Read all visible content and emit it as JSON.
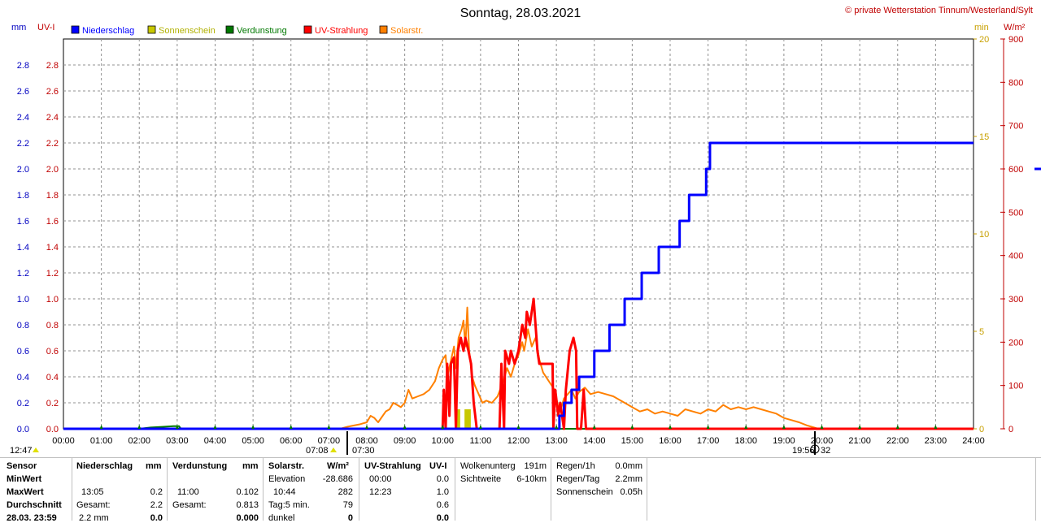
{
  "chart_data": {
    "type": "line",
    "title": "Sonntag, 28.03.2021",
    "copyright": "© private Wetterstation Tinnum/Westerland/Sylt",
    "left_units": [
      "mm",
      "UV-I"
    ],
    "right_units": [
      "min",
      "W/m²"
    ],
    "legend": [
      {
        "name": "Niederschlag",
        "color": "#0000ff"
      },
      {
        "name": "Sonnenschein",
        "color": "#c8c800"
      },
      {
        "name": "Verdunstung",
        "color": "#007800"
      },
      {
        "name": "UV-Strahlung",
        "color": "#ff0000"
      },
      {
        "name": "Solarstr.",
        "color": "#ff8000"
      }
    ],
    "x_labels": [
      "00:00",
      "01:00",
      "02:00",
      "03:00",
      "04:00",
      "05:00",
      "06:00",
      "07:00",
      "08:00",
      "09:00",
      "10:00",
      "11:00",
      "12:00",
      "13:00",
      "14:00",
      "15:00",
      "16:00",
      "17:00",
      "18:00",
      "19:00",
      "20:00",
      "21:00",
      "22:00",
      "23:00",
      "24:00"
    ],
    "xlim": [
      0,
      24
    ],
    "y_mm_ticks": [
      "0.0",
      "0.2",
      "0.4",
      "0.6",
      "0.8",
      "1.0",
      "1.2",
      "1.4",
      "1.6",
      "1.8",
      "2.0",
      "2.2",
      "2.4",
      "2.6",
      "2.8"
    ],
    "ylim_mm": [
      0,
      3.0
    ],
    "y_min_ticks": [
      "0",
      "5",
      "10",
      "15",
      "20"
    ],
    "ylim_min": [
      0,
      20
    ],
    "y_wm2_ticks": [
      "0",
      "100",
      "200",
      "300",
      "400",
      "500",
      "600",
      "700",
      "800",
      "900"
    ],
    "ylim_wm2": [
      0,
      900
    ],
    "markers": {
      "sunrise": "07:08",
      "civil": "07:30",
      "sunset": "19:56",
      "dusk": "20:32",
      "noon": "12:47"
    },
    "series": [
      {
        "name": "Niederschlag",
        "color": "#0000ff",
        "unit": "mm",
        "step": true,
        "points": [
          [
            0,
            0
          ],
          [
            13.0,
            0
          ],
          [
            13.08,
            0.1
          ],
          [
            13.2,
            0.2
          ],
          [
            13.4,
            0.3
          ],
          [
            13.6,
            0.4
          ],
          [
            14.0,
            0.6
          ],
          [
            14.4,
            0.8
          ],
          [
            14.8,
            1.0
          ],
          [
            15.25,
            1.2
          ],
          [
            15.7,
            1.4
          ],
          [
            16.25,
            1.6
          ],
          [
            16.5,
            1.8
          ],
          [
            16.95,
            2.0
          ],
          [
            17.05,
            2.2
          ],
          [
            24,
            2.2
          ]
        ]
      },
      {
        "name": "Verdunstung",
        "color": "#007800",
        "unit": "mm",
        "points": [
          [
            0,
            0
          ],
          [
            2.0,
            0
          ],
          [
            2.3,
            0.01
          ],
          [
            2.6,
            0.015
          ],
          [
            2.9,
            0.02
          ],
          [
            3.05,
            0.02
          ],
          [
            3.1,
            0
          ],
          [
            24,
            0
          ]
        ]
      },
      {
        "name": "Sonnenschein",
        "color": "#c8c800",
        "unit": "min",
        "bars": true,
        "points": [
          [
            10.42,
            1.0
          ],
          [
            10.62,
            1.0
          ],
          [
            10.7,
            1.0
          ]
        ]
      },
      {
        "name": "UV-Strahlung",
        "color": "#ff0000",
        "unit": "UV-I",
        "points": [
          [
            0,
            0
          ],
          [
            10.0,
            0
          ],
          [
            10.03,
            0.3
          ],
          [
            10.08,
            0
          ],
          [
            10.12,
            0.5
          ],
          [
            10.18,
            0.1
          ],
          [
            10.22,
            0.5
          ],
          [
            10.3,
            0.55
          ],
          [
            10.35,
            0
          ],
          [
            10.4,
            0.6
          ],
          [
            10.48,
            0.7
          ],
          [
            10.55,
            0.6
          ],
          [
            10.6,
            0.7
          ],
          [
            10.68,
            0.6
          ],
          [
            10.75,
            0.5
          ],
          [
            10.82,
            0.2
          ],
          [
            10.9,
            0
          ],
          [
            11.5,
            0
          ],
          [
            11.55,
            0.5
          ],
          [
            11.62,
            0
          ],
          [
            11.65,
            0.6
          ],
          [
            11.75,
            0.5
          ],
          [
            11.8,
            0.6
          ],
          [
            11.9,
            0.5
          ],
          [
            12.0,
            0.6
          ],
          [
            12.05,
            0.7
          ],
          [
            12.1,
            0.8
          ],
          [
            12.18,
            0.7
          ],
          [
            12.22,
            0.9
          ],
          [
            12.3,
            0.8
          ],
          [
            12.35,
            0.9
          ],
          [
            12.4,
            1.0
          ],
          [
            12.45,
            0.8
          ],
          [
            12.5,
            0.6
          ],
          [
            12.55,
            0.5
          ],
          [
            12.9,
            0.5
          ],
          [
            12.92,
            0
          ],
          [
            12.97,
            0.3
          ],
          [
            13.05,
            0.1
          ],
          [
            13.1,
            0.2
          ],
          [
            13.2,
            0
          ],
          [
            13.25,
            0.3
          ],
          [
            13.35,
            0.6
          ],
          [
            13.45,
            0.7
          ],
          [
            13.52,
            0.6
          ],
          [
            13.55,
            0.0
          ],
          [
            13.65,
            0
          ],
          [
            13.72,
            0.3
          ],
          [
            13.78,
            0
          ],
          [
            24,
            0
          ]
        ]
      },
      {
        "name": "Solarstr.",
        "color": "#ff8000",
        "unit": "W/m²",
        "points": [
          [
            0,
            0
          ],
          [
            7.3,
            0
          ],
          [
            7.5,
            5
          ],
          [
            7.8,
            10
          ],
          [
            8.0,
            15
          ],
          [
            8.1,
            30
          ],
          [
            8.2,
            25
          ],
          [
            8.3,
            15
          ],
          [
            8.5,
            40
          ],
          [
            8.6,
            45
          ],
          [
            8.7,
            60
          ],
          [
            8.8,
            55
          ],
          [
            8.9,
            50
          ],
          [
            9.0,
            60
          ],
          [
            9.1,
            90
          ],
          [
            9.2,
            70
          ],
          [
            9.35,
            75
          ],
          [
            9.5,
            80
          ],
          [
            9.65,
            90
          ],
          [
            9.8,
            110
          ],
          [
            9.9,
            140
          ],
          [
            10.0,
            160
          ],
          [
            10.08,
            170
          ],
          [
            10.12,
            120
          ],
          [
            10.2,
            150
          ],
          [
            10.3,
            190
          ],
          [
            10.35,
            140
          ],
          [
            10.42,
            210
          ],
          [
            10.5,
            230
          ],
          [
            10.55,
            250
          ],
          [
            10.6,
            190
          ],
          [
            10.65,
            280
          ],
          [
            10.7,
            180
          ],
          [
            10.78,
            120
          ],
          [
            10.85,
            100
          ],
          [
            10.95,
            80
          ],
          [
            11.05,
            60
          ],
          [
            11.15,
            65
          ],
          [
            11.3,
            60
          ],
          [
            11.45,
            75
          ],
          [
            11.6,
            110
          ],
          [
            11.7,
            140
          ],
          [
            11.8,
            120
          ],
          [
            11.9,
            150
          ],
          [
            12.0,
            170
          ],
          [
            12.1,
            200
          ],
          [
            12.15,
            180
          ],
          [
            12.25,
            230
          ],
          [
            12.35,
            190
          ],
          [
            12.45,
            210
          ],
          [
            12.55,
            160
          ],
          [
            12.65,
            130
          ],
          [
            12.8,
            110
          ],
          [
            12.95,
            90
          ],
          [
            13.05,
            50
          ],
          [
            13.1,
            40
          ],
          [
            13.2,
            70
          ],
          [
            13.3,
            80
          ],
          [
            13.4,
            90
          ],
          [
            13.5,
            70
          ],
          [
            13.6,
            85
          ],
          [
            13.75,
            95
          ],
          [
            13.9,
            80
          ],
          [
            14.1,
            85
          ],
          [
            14.3,
            80
          ],
          [
            14.5,
            75
          ],
          [
            14.8,
            60
          ],
          [
            15.0,
            50
          ],
          [
            15.2,
            40
          ],
          [
            15.4,
            45
          ],
          [
            15.6,
            35
          ],
          [
            15.8,
            40
          ],
          [
            16.0,
            35
          ],
          [
            16.2,
            30
          ],
          [
            16.4,
            45
          ],
          [
            16.6,
            40
          ],
          [
            16.8,
            35
          ],
          [
            17.0,
            45
          ],
          [
            17.2,
            40
          ],
          [
            17.4,
            55
          ],
          [
            17.6,
            45
          ],
          [
            17.8,
            50
          ],
          [
            18.0,
            45
          ],
          [
            18.2,
            50
          ],
          [
            18.4,
            45
          ],
          [
            18.6,
            40
          ],
          [
            18.8,
            35
          ],
          [
            19.0,
            25
          ],
          [
            19.2,
            20
          ],
          [
            19.4,
            15
          ],
          [
            19.6,
            8
          ],
          [
            19.8,
            3
          ],
          [
            19.9,
            0
          ],
          [
            24,
            0
          ]
        ]
      }
    ]
  },
  "tables": {
    "sensor": {
      "h": "Sensor",
      "rows": [
        "MinWert",
        "MaxWert",
        "Durchschnitt",
        "28.03. 23:59"
      ]
    },
    "niederschlag": {
      "h": "Niederschlag",
      "unit": "mm",
      "rows": [
        [
          "",
          ""
        ],
        [
          "13:05",
          "0.2"
        ],
        [
          "Gesamt:",
          "2.2"
        ],
        [
          "2.2 mm",
          "0.0"
        ]
      ]
    },
    "verdunstung": {
      "h": "Verdunstung",
      "unit": "mm",
      "rows": [
        [
          "",
          ""
        ],
        [
          "11:00",
          "0.102"
        ],
        [
          "Gesamt:",
          "0.813"
        ],
        [
          "",
          "0.000"
        ]
      ]
    },
    "solar": {
      "h": "Solarstr.",
      "unit": "W/m²",
      "rows": [
        [
          "Elevation",
          "-28.686"
        ],
        [
          "10:44",
          "282"
        ],
        [
          "Tag:5 min.",
          "79"
        ],
        [
          "dunkel",
          "0"
        ]
      ]
    },
    "uv": {
      "h": "UV-Strahlung",
      "unit": "UV-I",
      "rows": [
        [
          "00:00",
          "0.0"
        ],
        [
          "12:23",
          "1.0"
        ],
        [
          "",
          "0.6"
        ],
        [
          "",
          "0.0"
        ]
      ]
    },
    "wolken": {
      "rows": [
        [
          "Wolkenunterg",
          "191m"
        ],
        [
          "Sichtweite",
          "6-10km"
        ]
      ]
    },
    "regen": {
      "rows": [
        [
          "Regen/1h",
          "0.0mm"
        ],
        [
          "Regen/Tag",
          "2.2mm"
        ],
        [
          "Sonnenschein",
          "0.05h"
        ]
      ]
    }
  }
}
